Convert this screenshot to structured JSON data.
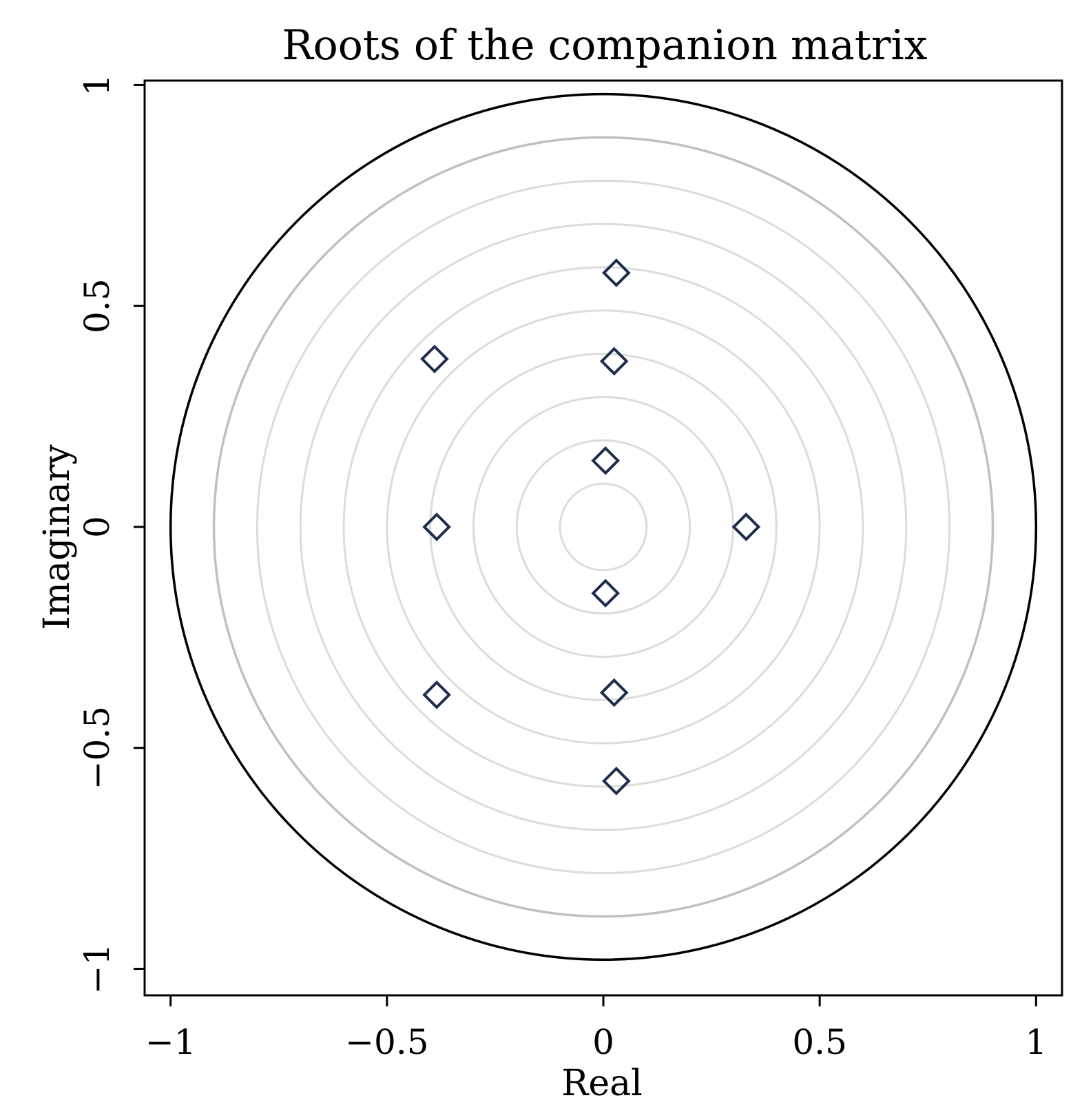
{
  "chart_data": {
    "type": "scatter",
    "title": "Roots of the companion matrix",
    "xlabel": "Real",
    "ylabel": "Imaginary",
    "xlim": [
      -1.06,
      1.06
    ],
    "ylim": [
      -1.06,
      1.01
    ],
    "xticks": [
      -1,
      -0.5,
      0,
      0.5,
      1
    ],
    "xtick_labels": [
      "−1",
      "−0.5",
      "0",
      "0.5",
      "1"
    ],
    "yticks": [
      -1,
      -0.5,
      0,
      0.5,
      1
    ],
    "ytick_labels": [
      "−1",
      "−0.5",
      "0",
      "0.5",
      "1"
    ],
    "grid": false,
    "marker": "diamond-open",
    "marker_color": "#1f2d4d",
    "unit_circle_color": "#000000",
    "inner_circle_color": "#c0c0c0",
    "ring_color": "#dcdcdc",
    "unit_circle_radius": 1,
    "inner_circle_radius": 0.9,
    "ring_radii": [
      0.1,
      0.2,
      0.3,
      0.4,
      0.5,
      0.6,
      0.7,
      0.8
    ],
    "points": [
      {
        "x": 0.03,
        "y": 0.575
      },
      {
        "x": -0.39,
        "y": 0.38
      },
      {
        "x": 0.025,
        "y": 0.375
      },
      {
        "x": 0.005,
        "y": 0.15
      },
      {
        "x": -0.385,
        "y": 0.0
      },
      {
        "x": 0.33,
        "y": 0.0
      },
      {
        "x": 0.005,
        "y": -0.15
      },
      {
        "x": -0.385,
        "y": -0.38
      },
      {
        "x": 0.025,
        "y": -0.375
      },
      {
        "x": 0.03,
        "y": -0.575
      }
    ]
  }
}
